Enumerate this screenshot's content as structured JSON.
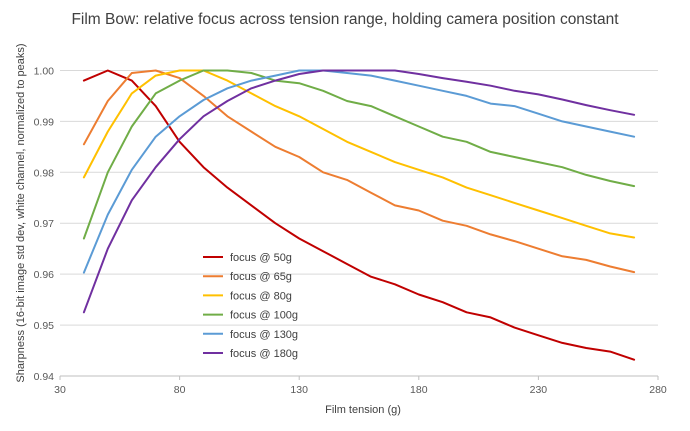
{
  "chart_data": {
    "type": "line",
    "title": "Film Bow: relative focus across tension range, holding camera position constant",
    "xlabel": "Film tension (g)",
    "ylabel": "Sharpness (16-bit image std dev, white channel, normalized to peaks)",
    "xlim": [
      30,
      280
    ],
    "ylim": [
      0.94,
      1.005
    ],
    "xticks": [
      30,
      80,
      130,
      180,
      230,
      280
    ],
    "yticks": [
      "0.94",
      "0.95",
      "0.96",
      "0.97",
      "0.98",
      "0.99",
      "1.00"
    ],
    "grid": "horizontal",
    "legend_position": "lower-left-inside",
    "x": [
      40,
      50,
      60,
      70,
      80,
      90,
      100,
      110,
      120,
      130,
      140,
      150,
      160,
      170,
      180,
      190,
      200,
      210,
      220,
      230,
      240,
      250,
      260,
      270
    ],
    "series": [
      {
        "name": "focus @ 50g",
        "color": "#c00000",
        "values": [
          0.998,
          1.0,
          0.998,
          0.993,
          0.986,
          0.981,
          0.977,
          0.9735,
          0.97,
          0.967,
          0.9645,
          0.962,
          0.9595,
          0.958,
          0.956,
          0.9545,
          0.9525,
          0.9515,
          0.9495,
          0.948,
          0.9465,
          0.9455,
          0.9448,
          0.9432
        ]
      },
      {
        "name": "focus @ 65g",
        "color": "#ed7d31",
        "values": [
          0.9855,
          0.994,
          0.9995,
          1.0,
          0.9985,
          0.995,
          0.991,
          0.988,
          0.985,
          0.983,
          0.98,
          0.9785,
          0.976,
          0.9735,
          0.9725,
          0.9705,
          0.9695,
          0.9678,
          0.9665,
          0.965,
          0.9635,
          0.9628,
          0.9615,
          0.9604
        ]
      },
      {
        "name": "focus @ 80g",
        "color": "#ffc000",
        "values": [
          0.979,
          0.988,
          0.9955,
          0.999,
          1.0,
          1.0,
          0.998,
          0.9955,
          0.993,
          0.991,
          0.9885,
          0.986,
          0.984,
          0.982,
          0.9805,
          0.979,
          0.977,
          0.9755,
          0.974,
          0.9725,
          0.971,
          0.9695,
          0.968,
          0.9672
        ]
      },
      {
        "name": "focus @ 100g",
        "color": "#70ad47",
        "values": [
          0.967,
          0.98,
          0.989,
          0.9955,
          0.998,
          1.0,
          1.0,
          0.9995,
          0.998,
          0.9975,
          0.996,
          0.994,
          0.993,
          0.991,
          0.989,
          0.987,
          0.986,
          0.984,
          0.983,
          0.982,
          0.981,
          0.9795,
          0.9783,
          0.9773
        ]
      },
      {
        "name": "focus @ 130g",
        "color": "#5b9bd5",
        "values": [
          0.9603,
          0.9717,
          0.9805,
          0.987,
          0.991,
          0.9942,
          0.9965,
          0.998,
          0.999,
          1.0,
          1.0,
          0.9995,
          0.999,
          0.998,
          0.997,
          0.996,
          0.995,
          0.9935,
          0.993,
          0.9915,
          0.99,
          0.989,
          0.988,
          0.987
        ]
      },
      {
        "name": "focus @ 180g",
        "color": "#7030a0",
        "values": [
          0.9525,
          0.965,
          0.9745,
          0.981,
          0.9865,
          0.991,
          0.994,
          0.9965,
          0.998,
          0.9993,
          1.0,
          1.0,
          1.0,
          1.0,
          0.9993,
          0.9985,
          0.9978,
          0.997,
          0.996,
          0.9953,
          0.9943,
          0.9932,
          0.9922,
          0.9913
        ]
      }
    ]
  }
}
